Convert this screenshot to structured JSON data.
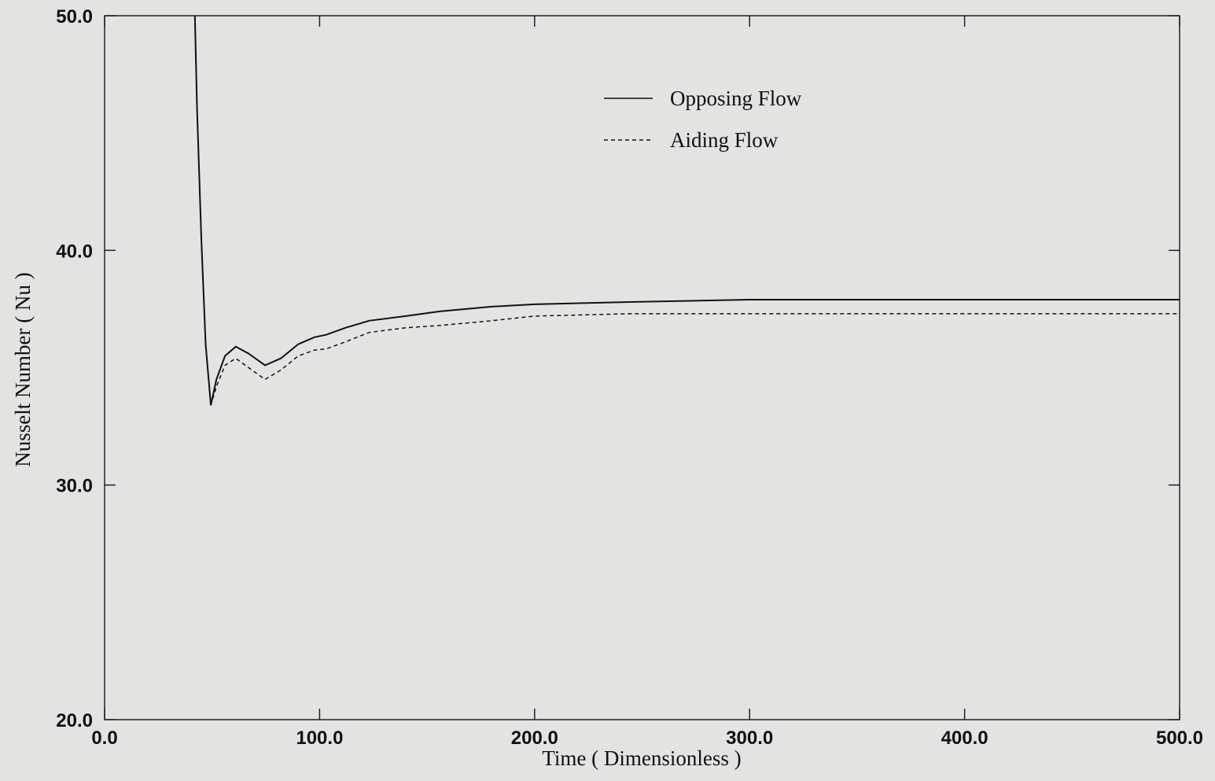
{
  "chart_data": {
    "type": "line",
    "x_label": "Time ( Dimensionless )",
    "y_label": "Nusselt Number ( Nu )",
    "x": [
      42,
      43,
      45,
      47,
      49.4,
      52,
      56,
      61,
      67,
      74.6,
      82,
      90,
      97.7,
      103,
      112,
      123,
      140,
      156,
      180,
      200,
      244,
      300,
      400,
      500
    ],
    "series": [
      {
        "name": "Opposing Flow",
        "color": "#111111",
        "dashed": false,
        "values": [
          50,
          46,
          40.5,
          36,
          33.4,
          34.5,
          35.5,
          35.9,
          35.6,
          35.1,
          35.4,
          36.0,
          36.3,
          36.4,
          36.7,
          37.0,
          37.2,
          37.4,
          37.6,
          37.7,
          37.8,
          37.9,
          37.9,
          37.9
        ]
      },
      {
        "name": "Aiding Flow",
        "color": "#111111",
        "dashed": true,
        "values": [
          50,
          46,
          40.5,
          36,
          33.4,
          34.2,
          35.1,
          35.4,
          35.0,
          34.5,
          34.9,
          35.5,
          35.75,
          35.8,
          36.1,
          36.5,
          36.7,
          36.8,
          37.0,
          37.2,
          37.3,
          37.3,
          37.3,
          37.3
        ]
      }
    ],
    "xlim": [
      0,
      500
    ],
    "ylim": [
      20,
      50
    ],
    "xticks": [
      {
        "value": 0,
        "label": "0.0"
      },
      {
        "value": 100,
        "label": "100.0"
      },
      {
        "value": 200,
        "label": "200.0"
      },
      {
        "value": 300,
        "label": "300.0"
      },
      {
        "value": 400,
        "label": "400.0"
      },
      {
        "value": 500,
        "label": "500.0"
      }
    ],
    "yticks": [
      {
        "value": 20,
        "label": "20.0"
      },
      {
        "value": 30,
        "label": "30.0"
      },
      {
        "value": 40,
        "label": "40.0"
      },
      {
        "value": 50,
        "label": "50.0"
      }
    ],
    "grid": false
  }
}
